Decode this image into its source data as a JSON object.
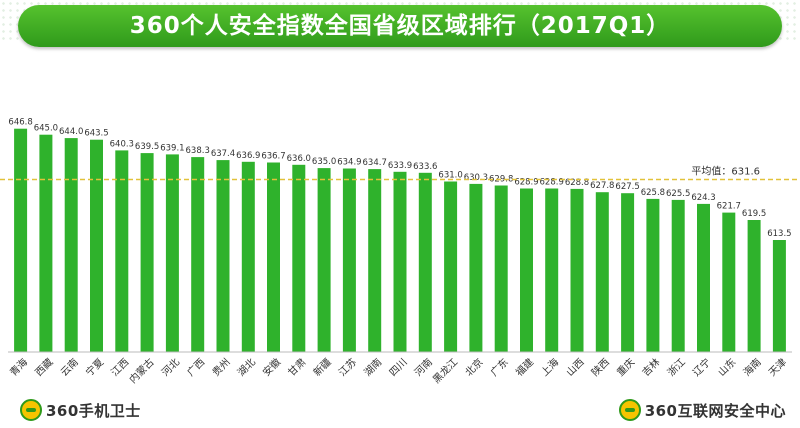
{
  "header": {
    "title": "360个人安全指数全国省级区域排行（2017Q1）"
  },
  "footer": {
    "left_brand": "360手机卫士",
    "right_brand": "360互联网安全中心"
  },
  "colors": {
    "bar": "#2fb22c",
    "banner": "#3aa724",
    "average_line": "#e2c23a"
  },
  "chart_data": {
    "type": "bar",
    "categories": [
      "青海",
      "西藏",
      "云南",
      "宁夏",
      "江西",
      "内蒙古",
      "河北",
      "广西",
      "贵州",
      "湖北",
      "安徽",
      "甘肃",
      "新疆",
      "江苏",
      "湖南",
      "四川",
      "河南",
      "黑龙江",
      "北京",
      "广东",
      "福建",
      "上海",
      "山西",
      "陕西",
      "重庆",
      "吉林",
      "浙江",
      "辽宁",
      "山东",
      "海南",
      "天津"
    ],
    "values": [
      646.8,
      645.0,
      644.0,
      643.5,
      640.3,
      639.5,
      639.1,
      638.3,
      637.4,
      636.9,
      636.7,
      636.0,
      635.0,
      634.9,
      634.7,
      633.9,
      633.6,
      631.0,
      630.3,
      629.8,
      628.9,
      628.9,
      628.8,
      627.8,
      627.5,
      625.8,
      625.5,
      624.3,
      621.7,
      619.5,
      613.5
    ],
    "value_labels": [
      "646.8",
      "645.0",
      "644.0",
      "643.5",
      "640.3",
      "639.5",
      "639.1",
      "638.3",
      "637.4",
      "636.9",
      "636.7",
      "636.0",
      "635.0",
      "634.9",
      "634.7",
      "633.9",
      "633.6",
      "631.0",
      "630.3",
      "629.8",
      "628.9",
      "628.9",
      "628.8",
      "627.8",
      "627.5",
      "625.8",
      "625.5",
      "624.3",
      "621.7",
      "619.5",
      "613.5"
    ],
    "ylim": [
      580,
      650
    ],
    "reference_line": {
      "value": 631.6,
      "label": "平均值：631.6"
    },
    "grid": false,
    "legend": "none"
  }
}
